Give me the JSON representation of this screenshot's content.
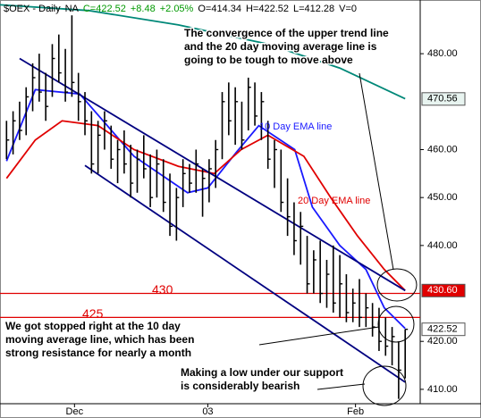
{
  "chart_data": {
    "type": "ohlc",
    "header": [
      {
        "text": "$OEX - Daily",
        "color": "#000000"
      },
      {
        "text": "NA",
        "color": "#000000"
      },
      {
        "text": "C=422.52",
        "color": "#009900"
      },
      {
        "text": "+8.48",
        "color": "#009900"
      },
      {
        "text": "+2.05%",
        "color": "#009900"
      },
      {
        "text": "O=414.34",
        "color": "#000000"
      },
      {
        "text": "H=422.52",
        "color": "#000000"
      },
      {
        "text": "L=412.28",
        "color": "#000000"
      },
      {
        "text": "V=0",
        "color": "#000000"
      }
    ],
    "xlim": [
      -1,
      63.3
    ],
    "xticks": [
      {
        "value": 10.4,
        "label": "Dec"
      },
      {
        "value": 30.8,
        "label": "03"
      },
      {
        "value": 53.4,
        "label": "Feb"
      }
    ],
    "ylim": [
      407,
      491.2
    ],
    "yticks": [
      {
        "value": 480,
        "label": "480.00"
      },
      {
        "value": 460,
        "label": "460.00"
      },
      {
        "value": 450,
        "label": "450.00"
      },
      {
        "value": 440,
        "label": "440.00"
      },
      {
        "value": 420,
        "label": "420.00"
      },
      {
        "value": 410,
        "label": "410.00"
      }
    ],
    "bar_color": "#000000",
    "high": [
      466,
      468,
      470,
      473,
      478,
      480,
      476,
      482,
      484,
      481,
      488,
      476,
      472,
      468,
      466,
      468,
      465,
      462,
      464,
      461,
      460,
      463,
      459,
      460,
      458,
      455,
      452,
      458,
      457,
      460,
      456,
      458,
      462,
      472,
      474,
      473,
      470,
      475,
      474,
      472,
      466,
      462,
      460,
      454,
      449,
      447,
      442,
      439,
      441,
      437,
      440,
      438,
      434,
      431,
      433,
      430,
      428,
      427,
      425,
      423,
      420,
      422.52
    ],
    "low": [
      458,
      459,
      462,
      463,
      468,
      470,
      466,
      471,
      474,
      470,
      471,
      466,
      463,
      455,
      455,
      460,
      456,
      453,
      455,
      450,
      451,
      454,
      448,
      450,
      447,
      442,
      441,
      448,
      451,
      451,
      446,
      449,
      452,
      458,
      463,
      461,
      460,
      464,
      465,
      462,
      456,
      452,
      447,
      442,
      438,
      436,
      430,
      430,
      428,
      427,
      426,
      425,
      424,
      424,
      423,
      423,
      421,
      418,
      417,
      415,
      408,
      412.28
    ],
    "close": [
      462,
      466,
      464,
      471,
      475,
      472,
      469,
      479,
      476,
      472,
      474,
      470,
      466,
      457,
      463,
      466,
      458,
      460,
      457,
      453,
      458,
      456,
      450,
      457,
      449,
      444,
      450,
      455,
      453,
      457,
      454,
      456,
      460,
      470,
      466,
      470,
      462,
      473,
      467,
      470,
      458,
      460,
      449,
      446,
      441,
      444,
      432,
      437,
      430,
      434,
      428,
      432,
      426,
      428,
      425,
      427,
      423,
      420,
      419,
      421,
      414,
      422.52
    ],
    "series": [
      {
        "name": "10 Day EMA line",
        "color": "#1a1aff",
        "x": [
          0,
          4.4,
          11.2,
          19.5,
          27.7,
          30.8,
          35.2,
          38.6,
          44.1,
          46.8,
          51,
          55,
          57.8,
          61
        ],
        "values": [
          457.6,
          472.5,
          471.6,
          458.6,
          451,
          452,
          459.5,
          465,
          460,
          448,
          440,
          435,
          427,
          422.7
        ]
      },
      {
        "name": "20 Day EMA line",
        "color": "#e00000",
        "x": [
          0,
          4.4,
          8.5,
          14,
          19.5,
          26.3,
          31.8,
          35.9,
          40,
          45.5,
          49.6,
          53.7,
          57.8,
          61
        ],
        "values": [
          454,
          462,
          466,
          465,
          460,
          456.5,
          455,
          460,
          463,
          458.6,
          450,
          442,
          435,
          430.6
        ]
      },
      {
        "color": "#008878",
        "x": [
          -1,
          12.6,
          26.3,
          40,
          51,
          61
        ],
        "values": [
          490.2,
          489,
          486,
          482,
          477,
          470.6
        ]
      },
      {
        "color": "#000080",
        "x": [
          2,
          61
        ],
        "values": [
          479,
          430.6
        ]
      },
      {
        "color": "#000080",
        "x": [
          12,
          61
        ],
        "values": [
          456.7,
          411.5
        ]
      }
    ],
    "hlines": [
      430,
      425
    ],
    "hline_color": "#e00000",
    "price_tags": [
      {
        "value": 470.56,
        "label": "470.56",
        "fill": "#e8f4f0",
        "text_color": "#000000"
      },
      {
        "value": 430.6,
        "label": "430.60",
        "fill": "#e00000",
        "text_color": "#ffffff"
      },
      {
        "value": 422.52,
        "label": "422.52",
        "fill": "#ffffff",
        "text_color": "#000000"
      }
    ],
    "annotations": [
      [
        "The convergence of the upper trend line",
        "and the 20 day moving average line is",
        "going to be tough to move above"
      ],
      [
        "We got stopped right at the 10 day",
        "moving average line, which has been",
        "strong resistance for nearly a month"
      ],
      [
        "Making a low under our support",
        "is considerably bearish"
      ]
    ]
  }
}
